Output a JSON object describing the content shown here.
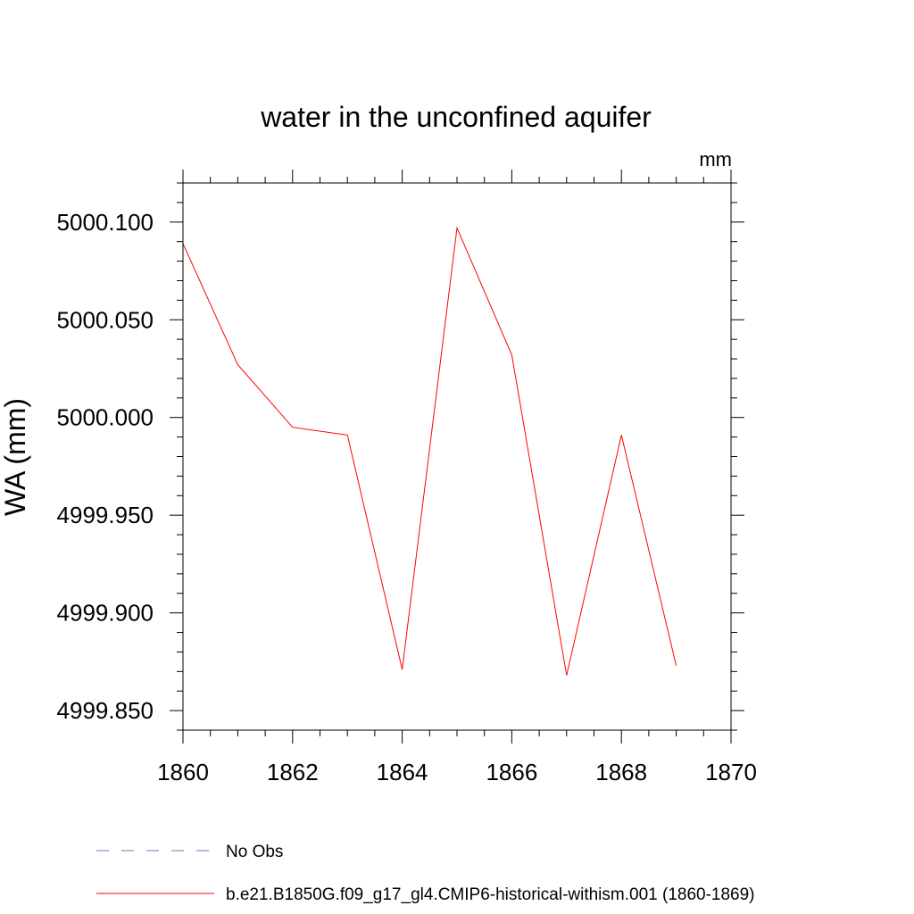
{
  "chart_data": {
    "type": "line",
    "title": "water in the unconfined aquifer",
    "units": "mm",
    "ylabel": "WA  (mm)",
    "xlabel": "",
    "xlim": [
      1860,
      1870
    ],
    "ylim": [
      4999.84,
      5000.12
    ],
    "x_ticks": [
      1860,
      1862,
      1864,
      1866,
      1868,
      1870
    ],
    "x_tick_labels": [
      "1860",
      "1862",
      "1864",
      "1866",
      "1868",
      "1870"
    ],
    "y_ticks": [
      4999.85,
      4999.9,
      4999.95,
      5000.0,
      5000.05,
      5000.1
    ],
    "y_tick_labels": [
      "4999.850",
      "4999.900",
      "4999.950",
      "5000.000",
      "5000.050",
      "5000.100"
    ],
    "grid": false,
    "series": [
      {
        "name": "b.e21.B1850G.f09_g17_gl4.CMIP6-historical-withism.001 (1860-1869)",
        "color": "#ff0000",
        "dash": "solid",
        "x": [
          1860,
          1861,
          1862,
          1863,
          1864,
          1865,
          1866,
          1867,
          1868,
          1869
        ],
        "values": [
          5000.089,
          5000.027,
          4999.995,
          4999.991,
          4999.871,
          5000.097,
          5000.032,
          4999.868,
          4999.991,
          4999.873
        ]
      }
    ],
    "legend": {
      "position": "bottom-left",
      "entries": [
        {
          "label": "No Obs",
          "color": "#7b6fb0",
          "dash": "dashed"
        },
        {
          "label": "b.e21.B1850G.f09_g17_gl4.CMIP6-historical-withism.001 (1860-1869)",
          "color": "#ff0000",
          "dash": "solid"
        }
      ]
    }
  }
}
